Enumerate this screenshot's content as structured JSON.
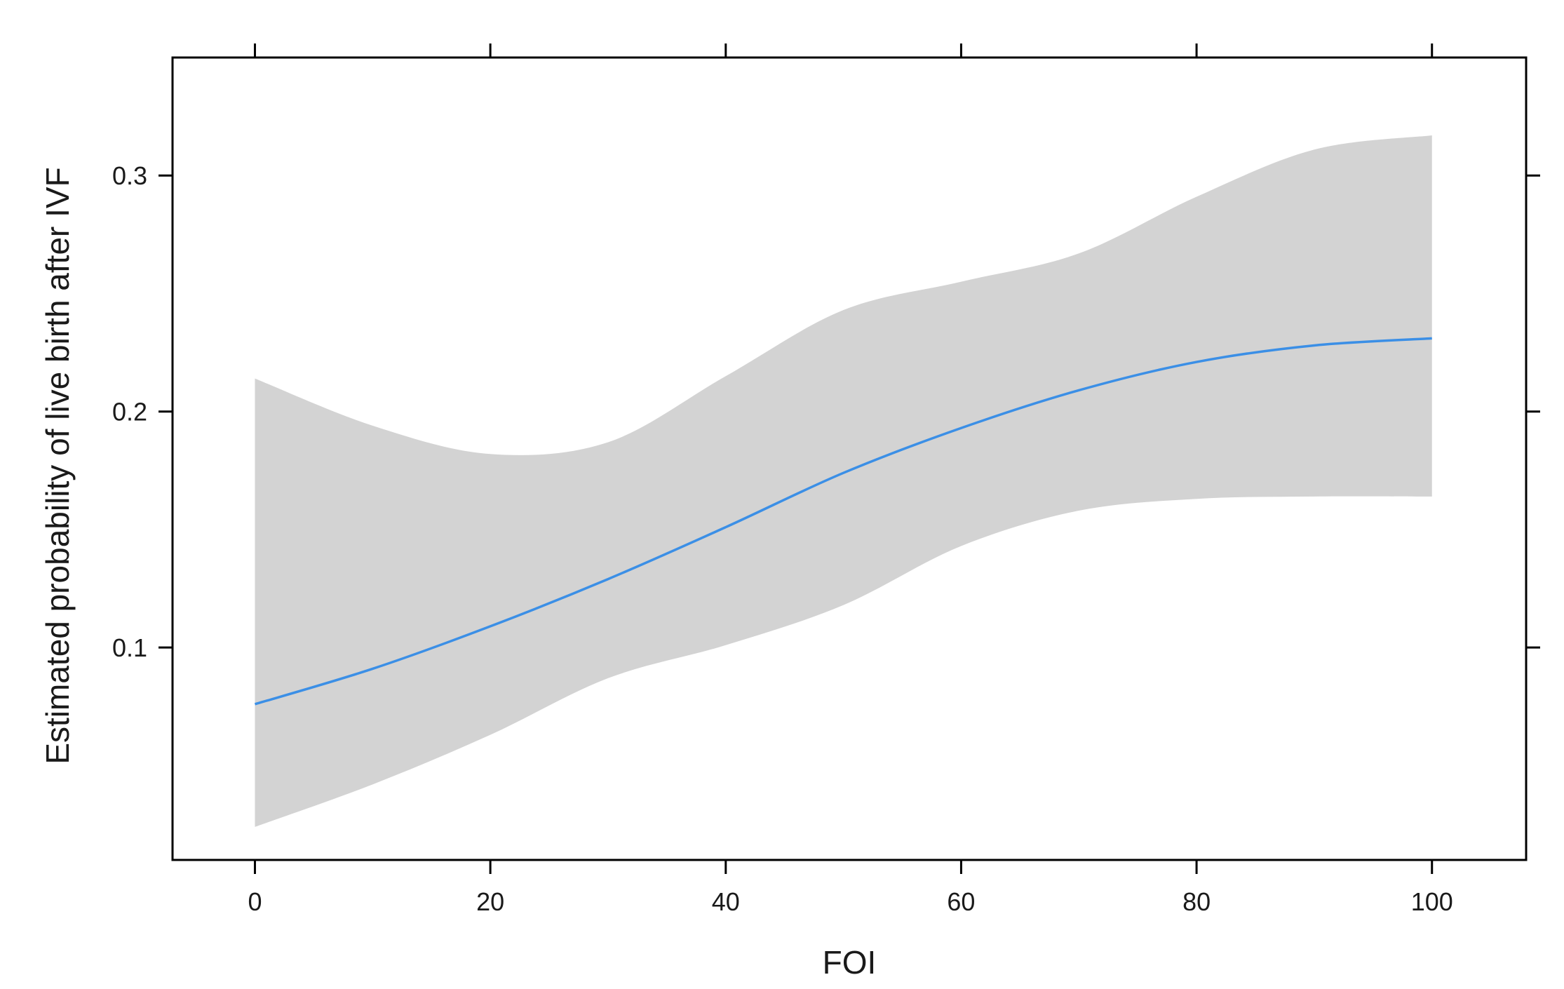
{
  "chart_data": {
    "type": "line",
    "title": "",
    "xlabel": "FOI",
    "ylabel": "Estimated probability of live birth after IVF",
    "xlim": [
      -7,
      108
    ],
    "ylim": [
      0.01,
      0.35
    ],
    "x_ticks": [
      0,
      20,
      40,
      60,
      80,
      100
    ],
    "x_tick_labels": [
      "0",
      "20",
      "40",
      "60",
      "80",
      "100"
    ],
    "y_ticks": [
      0.1,
      0.2,
      0.3
    ],
    "y_tick_labels": [
      "0.1",
      "0.2",
      "0.3"
    ],
    "grid": false,
    "series": [
      {
        "color": "#3b8fe6",
        "x": [
          0,
          10,
          20,
          30,
          40,
          50,
          60,
          70,
          80,
          90,
          100
        ],
        "y": [
          0.076,
          0.091,
          0.109,
          0.129,
          0.151,
          0.174,
          0.193,
          0.209,
          0.221,
          0.228,
          0.231
        ],
        "lower": [
          0.024,
          0.042,
          0.063,
          0.087,
          0.101,
          0.118,
          0.143,
          0.158,
          0.163,
          0.164,
          0.164
        ],
        "upper": [
          0.214,
          0.194,
          0.182,
          0.187,
          0.215,
          0.243,
          0.255,
          0.267,
          0.291,
          0.311,
          0.317
        ]
      }
    ],
    "band_color": "#d3d3d3",
    "axis_color": "#000000"
  }
}
